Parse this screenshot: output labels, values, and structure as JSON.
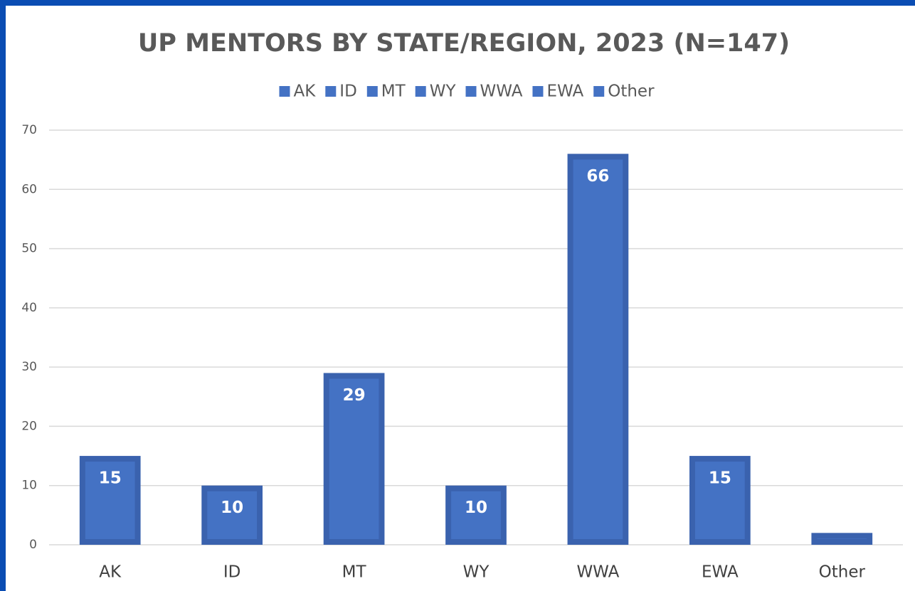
{
  "chart_data": {
    "type": "bar",
    "title": "UP MENTORS BY STATE/REGION, 2023 (N=147)",
    "categories": [
      "AK",
      "ID",
      "MT",
      "WY",
      "WWA",
      "EWA",
      "Other"
    ],
    "values": [
      15,
      10,
      29,
      10,
      66,
      15,
      2
    ],
    "value_labels": [
      "15",
      "10",
      "29",
      "10",
      "66",
      "15",
      null
    ],
    "color": "#4472c4",
    "ylim": [
      0,
      70
    ],
    "yticks": [
      0,
      10,
      20,
      30,
      40,
      50,
      60,
      70
    ],
    "grid": true,
    "legend": "top"
  }
}
